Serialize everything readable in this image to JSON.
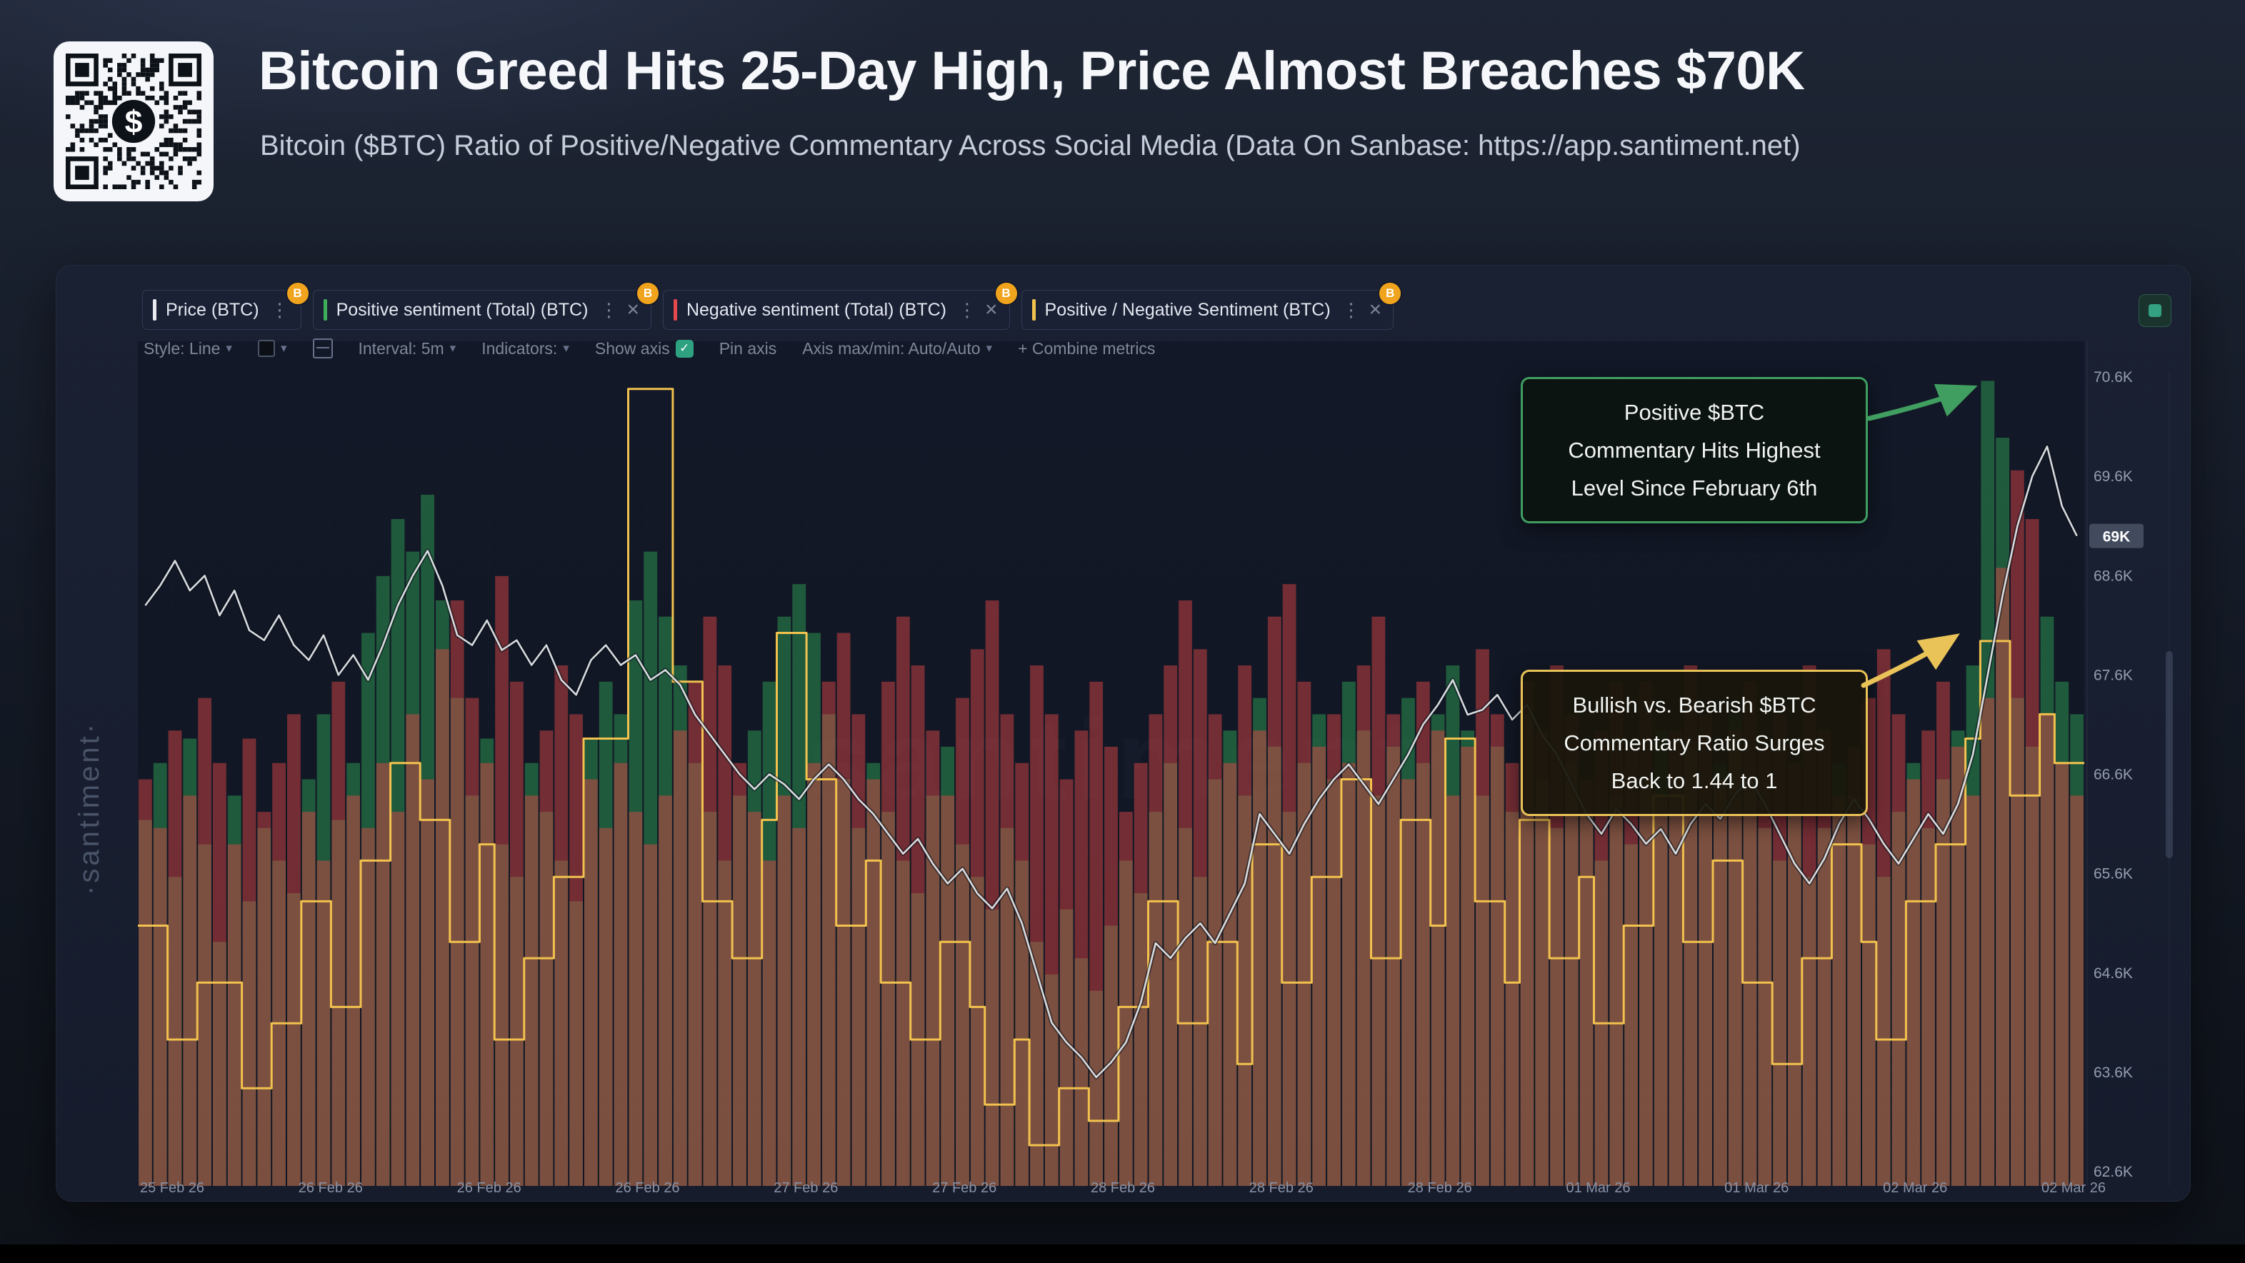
{
  "header": {
    "title": "Bitcoin Greed Hits 25-Day High, Price Almost Breaches $70K",
    "subtitle": "Bitcoin ($BTC) Ratio of Positive/Negative Commentary Across Social Media (Data On Sanbase: https://app.santiment.net)"
  },
  "icons": {
    "chevron_down": "▾",
    "more_vertical": "⋮",
    "close": "×",
    "check": "✓",
    "bitcoin_badge": "B",
    "dollar": "$"
  },
  "metrics": [
    {
      "label": "Price (BTC)",
      "color": "#e8eaf0"
    },
    {
      "label": "Positive sentiment (Total) (BTC)",
      "color": "#3fae5a"
    },
    {
      "label": "Negative sentiment (Total) (BTC)",
      "color": "#e5484d"
    },
    {
      "label": "Positive / Negative Sentiment (BTC)",
      "color": "#f2c14e"
    }
  ],
  "toolbar": {
    "style": "Style: Line",
    "interval": "Interval: 5m",
    "indicators": "Indicators:",
    "show_axis": "Show axis",
    "pin_axis": "Pin axis",
    "axis_maxmin": "Axis max/min: Auto/Auto",
    "combine": "+ Combine metrics"
  },
  "watermarks": {
    "side": "·santiment·",
    "center": "santiment·"
  },
  "annotations": {
    "positive": {
      "line1": "Positive $BTC",
      "line2": "Commentary Hits Highest",
      "line3": "Level Since February 6th",
      "border": "#3f9e60"
    },
    "ratio": {
      "line1": "Bullish vs. Bearish $BTC",
      "line2": "Commentary Ratio Surges",
      "line3": "Back to 1.44 to 1",
      "border": "#e9c258"
    }
  },
  "chart_data": {
    "type": "mixed",
    "x_ticks": [
      "25 Feb 26",
      "26 Feb 26",
      "26 Feb 26",
      "26 Feb 26",
      "27 Feb 26",
      "27 Feb 26",
      "28 Feb 26",
      "28 Feb 26",
      "28 Feb 26",
      "01 Mar 26",
      "01 Mar 26",
      "02 Mar 26",
      "02 Mar 26"
    ],
    "y_domain": {
      "min_value": 62.6,
      "max_value": 70.6,
      "unit": "K USD"
    },
    "y_ticks": [
      {
        "label": "70.6K",
        "value": 70.6
      },
      {
        "label": "69.6K",
        "value": 69.6
      },
      {
        "label": "68.6K",
        "value": 68.6
      },
      {
        "label": "67.6K",
        "value": 67.6
      },
      {
        "label": "66.6K",
        "value": 66.6
      },
      {
        "label": "65.6K",
        "value": 65.6
      },
      {
        "label": "64.6K",
        "value": 64.6
      },
      {
        "label": "63.6K",
        "value": 63.6
      },
      {
        "label": "62.6K",
        "value": 62.6
      }
    ],
    "current_price": {
      "label": "69K",
      "value": 69.0
    },
    "series": [
      {
        "name": "Price (BTC)",
        "type": "line",
        "color": "#d7dade",
        "values_k_usd": [
          68.3,
          68.5,
          68.75,
          68.45,
          68.6,
          68.2,
          68.45,
          68.05,
          67.95,
          68.2,
          67.9,
          67.75,
          68.0,
          67.6,
          67.8,
          67.55,
          67.9,
          68.3,
          68.6,
          68.85,
          68.5,
          68.0,
          67.9,
          68.15,
          67.85,
          67.95,
          67.7,
          67.9,
          67.55,
          67.4,
          67.75,
          67.9,
          67.7,
          67.8,
          67.55,
          67.65,
          67.5,
          67.2,
          67.0,
          66.8,
          66.6,
          66.45,
          66.6,
          66.5,
          66.35,
          66.55,
          66.7,
          66.55,
          66.35,
          66.2,
          66.0,
          65.8,
          65.95,
          65.7,
          65.5,
          65.65,
          65.4,
          65.25,
          65.45,
          65.1,
          64.6,
          64.1,
          63.9,
          63.75,
          63.55,
          63.7,
          63.9,
          64.3,
          64.9,
          64.75,
          64.95,
          65.1,
          64.9,
          65.2,
          65.5,
          66.2,
          66.0,
          65.8,
          66.1,
          66.35,
          66.55,
          66.7,
          66.5,
          66.3,
          66.55,
          66.8,
          67.1,
          67.3,
          67.55,
          67.2,
          67.25,
          67.4,
          67.15,
          67.3,
          67.0,
          66.8,
          66.5,
          66.2,
          66.0,
          66.25,
          66.1,
          65.9,
          66.05,
          65.8,
          66.1,
          66.3,
          66.15,
          66.4,
          66.55,
          66.3,
          66.0,
          65.7,
          65.5,
          65.75,
          66.1,
          66.35,
          66.15,
          65.9,
          65.7,
          65.95,
          66.2,
          66.0,
          66.3,
          66.8,
          67.6,
          68.4,
          69.1,
          69.6,
          69.9,
          69.3,
          69.0
        ]
      },
      {
        "name": "Positive sentiment (Total) (BTC)",
        "type": "bar",
        "color": "#2e9e53",
        "values_rel": [
          0.45,
          0.52,
          0.38,
          0.55,
          0.42,
          0.3,
          0.48,
          0.35,
          0.44,
          0.4,
          0.36,
          0.5,
          0.58,
          0.45,
          0.52,
          0.68,
          0.75,
          0.82,
          0.78,
          0.85,
          0.72,
          0.6,
          0.48,
          0.55,
          0.42,
          0.38,
          0.52,
          0.46,
          0.4,
          0.35,
          0.55,
          0.62,
          0.58,
          0.72,
          0.78,
          0.7,
          0.64,
          0.52,
          0.46,
          0.4,
          0.48,
          0.56,
          0.62,
          0.7,
          0.74,
          0.68,
          0.58,
          0.5,
          0.44,
          0.52,
          0.46,
          0.4,
          0.36,
          0.48,
          0.54,
          0.42,
          0.38,
          0.34,
          0.44,
          0.4,
          0.3,
          0.26,
          0.34,
          0.28,
          0.24,
          0.32,
          0.4,
          0.36,
          0.46,
          0.52,
          0.44,
          0.38,
          0.5,
          0.56,
          0.48,
          0.6,
          0.54,
          0.46,
          0.52,
          0.58,
          0.5,
          0.62,
          0.56,
          0.48,
          0.54,
          0.6,
          0.52,
          0.58,
          0.64,
          0.56,
          0.48,
          0.54,
          0.46,
          0.58,
          0.5,
          0.44,
          0.52,
          0.46,
          0.4,
          0.48,
          0.42,
          0.5,
          0.56,
          0.48,
          0.54,
          0.46,
          0.52,
          0.58,
          0.5,
          0.44,
          0.4,
          0.46,
          0.38,
          0.44,
          0.52,
          0.48,
          0.42,
          0.38,
          0.46,
          0.52,
          0.44,
          0.5,
          0.56,
          0.64,
          0.99,
          0.92,
          0.6,
          0.54,
          0.7,
          0.62,
          0.58
        ]
      },
      {
        "name": "Negative sentiment (Total) (BTC)",
        "type": "bar",
        "color": "#e04545",
        "values_rel": [
          0.5,
          0.44,
          0.56,
          0.48,
          0.6,
          0.52,
          0.42,
          0.55,
          0.46,
          0.52,
          0.58,
          0.46,
          0.4,
          0.62,
          0.48,
          0.44,
          0.52,
          0.46,
          0.58,
          0.5,
          0.66,
          0.72,
          0.6,
          0.52,
          0.75,
          0.62,
          0.48,
          0.56,
          0.64,
          0.58,
          0.5,
          0.44,
          0.52,
          0.46,
          0.42,
          0.48,
          0.56,
          0.62,
          0.7,
          0.64,
          0.52,
          0.46,
          0.4,
          0.48,
          0.44,
          0.52,
          0.62,
          0.68,
          0.58,
          0.5,
          0.62,
          0.7,
          0.64,
          0.56,
          0.48,
          0.6,
          0.66,
          0.72,
          0.58,
          0.52,
          0.64,
          0.58,
          0.5,
          0.56,
          0.62,
          0.54,
          0.46,
          0.52,
          0.58,
          0.64,
          0.72,
          0.66,
          0.58,
          0.52,
          0.64,
          0.56,
          0.7,
          0.74,
          0.62,
          0.54,
          0.58,
          0.52,
          0.64,
          0.7,
          0.58,
          0.5,
          0.62,
          0.56,
          0.48,
          0.54,
          0.66,
          0.58,
          0.52,
          0.62,
          0.56,
          0.64,
          0.58,
          0.5,
          0.56,
          0.62,
          0.54,
          0.62,
          0.48,
          0.56,
          0.64,
          0.58,
          0.5,
          0.56,
          0.62,
          0.54,
          0.58,
          0.52,
          0.64,
          0.56,
          0.48,
          0.54,
          0.6,
          0.66,
          0.58,
          0.5,
          0.56,
          0.62,
          0.54,
          0.48,
          0.6,
          0.76,
          0.88,
          0.82,
          0.58,
          0.52,
          0.48
        ]
      },
      {
        "name": "Positive / Negative Sentiment (BTC)",
        "type": "step_line",
        "color": "#f2c14e",
        "callout_value": "1.44 to 1",
        "values_rel": [
          0.32,
          0.32,
          0.18,
          0.18,
          0.25,
          0.25,
          0.25,
          0.12,
          0.12,
          0.2,
          0.2,
          0.35,
          0.35,
          0.22,
          0.22,
          0.4,
          0.4,
          0.52,
          0.52,
          0.45,
          0.45,
          0.3,
          0.3,
          0.42,
          0.18,
          0.18,
          0.28,
          0.28,
          0.38,
          0.38,
          0.55,
          0.55,
          0.55,
          0.98,
          0.98,
          0.98,
          0.62,
          0.62,
          0.35,
          0.35,
          0.28,
          0.28,
          0.45,
          0.68,
          0.68,
          0.5,
          0.5,
          0.32,
          0.32,
          0.4,
          0.25,
          0.25,
          0.18,
          0.18,
          0.3,
          0.3,
          0.22,
          0.1,
          0.1,
          0.18,
          0.05,
          0.05,
          0.12,
          0.12,
          0.08,
          0.08,
          0.22,
          0.22,
          0.35,
          0.35,
          0.2,
          0.2,
          0.3,
          0.3,
          0.15,
          0.42,
          0.42,
          0.25,
          0.25,
          0.38,
          0.38,
          0.5,
          0.5,
          0.28,
          0.28,
          0.45,
          0.45,
          0.32,
          0.55,
          0.55,
          0.35,
          0.35,
          0.25,
          0.45,
          0.45,
          0.28,
          0.28,
          0.38,
          0.2,
          0.2,
          0.32,
          0.32,
          0.48,
          0.48,
          0.3,
          0.3,
          0.4,
          0.4,
          0.25,
          0.25,
          0.15,
          0.15,
          0.28,
          0.28,
          0.42,
          0.42,
          0.3,
          0.18,
          0.18,
          0.35,
          0.35,
          0.42,
          0.42,
          0.55,
          0.67,
          0.67,
          0.48,
          0.48,
          0.58,
          0.52,
          0.52
        ]
      }
    ]
  }
}
